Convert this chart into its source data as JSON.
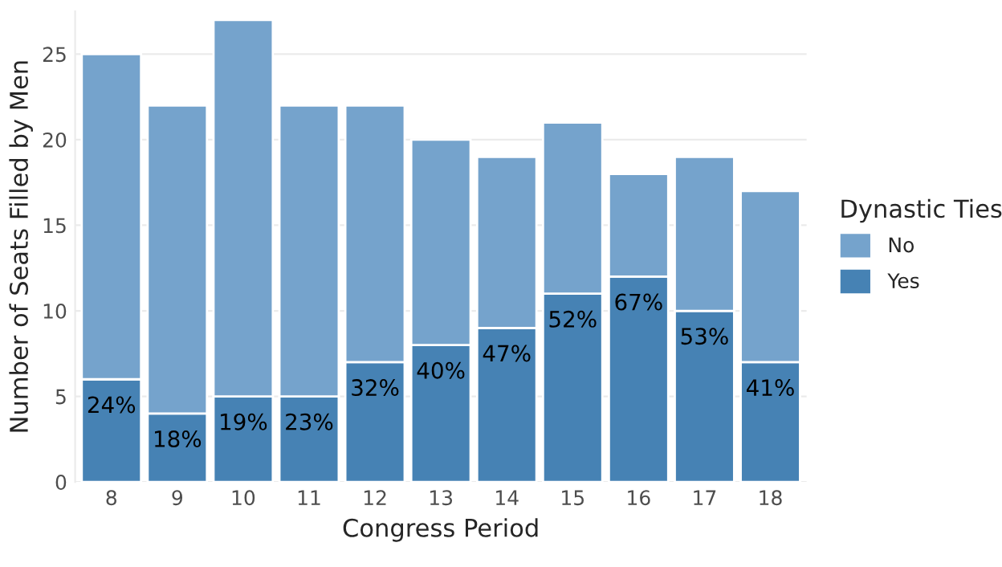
{
  "chart_data": {
    "type": "bar",
    "stacked": true,
    "xlabel": "Congress Period",
    "ylabel": "Number of Seats Filled by Men",
    "legend_title": "Dynastic Ties",
    "categories": [
      "8",
      "9",
      "10",
      "11",
      "12",
      "13",
      "14",
      "15",
      "16",
      "17",
      "18"
    ],
    "series": [
      {
        "name": "Yes",
        "color": "#4682b4",
        "values": [
          6,
          4,
          5,
          5,
          7,
          8,
          9,
          11,
          12,
          10,
          7
        ]
      },
      {
        "name": "No",
        "color": "#75a3cc",
        "values": [
          19,
          18,
          22,
          17,
          15,
          12,
          10,
          10,
          6,
          9,
          10
        ]
      }
    ],
    "annotations": [
      {
        "text": "24%",
        "x": "8",
        "y": 6
      },
      {
        "text": "18%",
        "x": "9",
        "y": 4
      },
      {
        "text": "19%",
        "x": "10",
        "y": 5
      },
      {
        "text": "23%",
        "x": "11",
        "y": 5
      },
      {
        "text": "32%",
        "x": "12",
        "y": 7
      },
      {
        "text": "40%",
        "x": "13",
        "y": 8
      },
      {
        "text": "47%",
        "x": "14",
        "y": 9
      },
      {
        "text": "52%",
        "x": "15",
        "y": 11
      },
      {
        "text": "67%",
        "x": "16",
        "y": 12
      },
      {
        "text": "53%",
        "x": "17",
        "y": 10
      },
      {
        "text": "41%",
        "x": "18",
        "y": 7
      }
    ],
    "ylim": [
      0,
      27.5
    ],
    "yticks": [
      0,
      5,
      10,
      15,
      20,
      25
    ],
    "grid": "y",
    "legend": "right"
  }
}
